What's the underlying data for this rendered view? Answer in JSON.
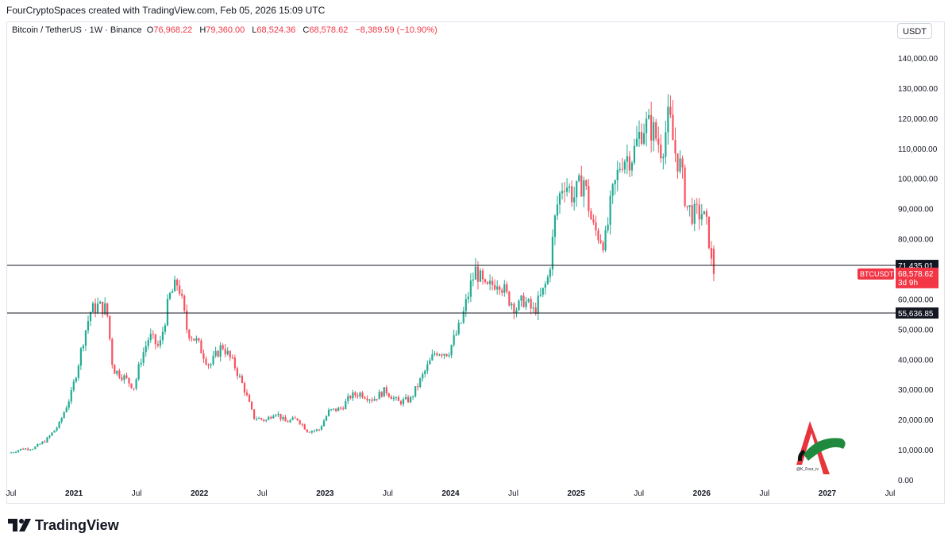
{
  "header": {
    "credit": "FourCryptoSpaces created with TradingView.com, Feb 05, 2026 15:09 UTC",
    "symbol": "Bitcoin / TetherUS · 1W · Binance",
    "open_label": "O",
    "open": "76,968.22",
    "high_label": "H",
    "high": "79,360.00",
    "low_label": "L",
    "low": "68,524.36",
    "close_label": "C",
    "close": "68,578.62",
    "change": "−8,389.59 (−10.90%)",
    "currency": "USDT"
  },
  "footer": {
    "brand": "TradingView"
  },
  "watermark": {
    "handle": "@K_Four_iv"
  },
  "colors": {
    "up": "#089981",
    "down": "#f23645",
    "up_candle": "#22ab94",
    "down_candle": "#f7525f"
  },
  "chart_data": {
    "type": "candlestick",
    "interval": "1W",
    "ylim": [
      0,
      145000
    ],
    "y_ticks": [
      {
        "value": 0,
        "label": "0.00"
      },
      {
        "value": 10000,
        "label": "10,000.00"
      },
      {
        "value": 20000,
        "label": "20,000.00"
      },
      {
        "value": 30000,
        "label": "30,000.00"
      },
      {
        "value": 40000,
        "label": "40,000.00"
      },
      {
        "value": 50000,
        "label": "50,000.00"
      },
      {
        "value": 60000,
        "label": "60,000.00"
      },
      {
        "value": 80000,
        "label": "80,000.00"
      },
      {
        "value": 90000,
        "label": "90,000.00"
      },
      {
        "value": 100000,
        "label": "100,000.00"
      },
      {
        "value": 110000,
        "label": "110,000.00"
      },
      {
        "value": 120000,
        "label": "120,000.00"
      },
      {
        "value": 130000,
        "label": "130,000.00"
      },
      {
        "value": 140000,
        "label": "140,000.00"
      }
    ],
    "x_ticks": [
      {
        "t": 2020.5,
        "label": "Jul",
        "bold": false
      },
      {
        "t": 2021.0,
        "label": "2021",
        "bold": true
      },
      {
        "t": 2021.5,
        "label": "Jul",
        "bold": false
      },
      {
        "t": 2022.0,
        "label": "2022",
        "bold": true
      },
      {
        "t": 2022.5,
        "label": "Jul",
        "bold": false
      },
      {
        "t": 2023.0,
        "label": "2023",
        "bold": true
      },
      {
        "t": 2023.5,
        "label": "Jul",
        "bold": false
      },
      {
        "t": 2024.0,
        "label": "2024",
        "bold": true
      },
      {
        "t": 2024.5,
        "label": "Jul",
        "bold": false
      },
      {
        "t": 2025.0,
        "label": "2025",
        "bold": true
      },
      {
        "t": 2025.5,
        "label": "Jul",
        "bold": false
      },
      {
        "t": 2026.0,
        "label": "2026",
        "bold": true
      },
      {
        "t": 2026.5,
        "label": "Jul",
        "bold": false
      },
      {
        "t": 2027.0,
        "label": "2027",
        "bold": true
      },
      {
        "t": 2027.5,
        "label": "Jul",
        "bold": false
      }
    ],
    "horizontal_lines": [
      {
        "value": 71435.01,
        "label": "71,435.01"
      },
      {
        "value": 55636.85,
        "label": "55,636.85"
      }
    ],
    "last_price": {
      "label": "BTCUSDT",
      "value": 68578.62,
      "value_label": "68,578.62",
      "countdown": "3d 9h"
    },
    "price_path": [
      [
        2020.5,
        9100
      ],
      [
        2020.6,
        10500
      ],
      [
        2020.7,
        10800
      ],
      [
        2020.8,
        13500
      ],
      [
        2020.9,
        18500
      ],
      [
        2021.0,
        29000
      ],
      [
        2021.05,
        38000
      ],
      [
        2021.1,
        48000
      ],
      [
        2021.15,
        56000
      ],
      [
        2021.2,
        58000
      ],
      [
        2021.28,
        57000
      ],
      [
        2021.33,
        37000
      ],
      [
        2021.4,
        35000
      ],
      [
        2021.5,
        31000
      ],
      [
        2021.55,
        40000
      ],
      [
        2021.62,
        48000
      ],
      [
        2021.7,
        44000
      ],
      [
        2021.78,
        61000
      ],
      [
        2021.85,
        66000
      ],
      [
        2021.92,
        50000
      ],
      [
        2022.0,
        46000
      ],
      [
        2022.1,
        38000
      ],
      [
        2022.2,
        45000
      ],
      [
        2022.3,
        38000
      ],
      [
        2022.38,
        30000
      ],
      [
        2022.45,
        21000
      ],
      [
        2022.55,
        20000
      ],
      [
        2022.62,
        23000
      ],
      [
        2022.7,
        19500
      ],
      [
        2022.8,
        20500
      ],
      [
        2022.88,
        16500
      ],
      [
        2022.97,
        16800
      ],
      [
        2023.05,
        23000
      ],
      [
        2023.15,
        24000
      ],
      [
        2023.22,
        28000
      ],
      [
        2023.3,
        29000
      ],
      [
        2023.4,
        27000
      ],
      [
        2023.5,
        30000
      ],
      [
        2023.6,
        26000
      ],
      [
        2023.7,
        27000
      ],
      [
        2023.8,
        35000
      ],
      [
        2023.9,
        43000
      ],
      [
        2024.0,
        42500
      ],
      [
        2024.1,
        52000
      ],
      [
        2024.18,
        65000
      ],
      [
        2024.22,
        70000
      ],
      [
        2024.3,
        63000
      ],
      [
        2024.4,
        67000
      ],
      [
        2024.47,
        61000
      ],
      [
        2024.55,
        57000
      ],
      [
        2024.6,
        60000
      ],
      [
        2024.68,
        56000
      ],
      [
        2024.75,
        62000
      ],
      [
        2024.8,
        68000
      ],
      [
        2024.86,
        90000
      ],
      [
        2024.92,
        100000
      ],
      [
        2025.0,
        94000
      ],
      [
        2025.08,
        100000
      ],
      [
        2025.15,
        84000
      ],
      [
        2025.25,
        79000
      ],
      [
        2025.3,
        93000
      ],
      [
        2025.38,
        107000
      ],
      [
        2025.47,
        108000
      ],
      [
        2025.55,
        118000
      ],
      [
        2025.62,
        117000
      ],
      [
        2025.7,
        110000
      ],
      [
        2025.76,
        121000
      ],
      [
        2025.8,
        110000
      ],
      [
        2025.85,
        104000
      ],
      [
        2025.9,
        91000
      ],
      [
        2025.96,
        88000
      ],
      [
        2026.02,
        89000
      ],
      [
        2026.06,
        84000
      ],
      [
        2026.09,
        76968
      ],
      [
        2026.1,
        68578
      ]
    ]
  }
}
